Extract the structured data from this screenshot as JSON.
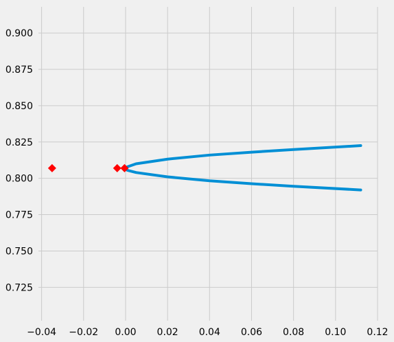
{
  "chart_data": {
    "type": "line",
    "style": "fivethirtyeight",
    "grid": true,
    "xlim": [
      -0.0415,
      0.12
    ],
    "ylim": [
      0.702,
      0.918
    ],
    "x_ticks": [
      -0.04,
      -0.02,
      0.0,
      0.02,
      0.04,
      0.06,
      0.08,
      0.1,
      0.12
    ],
    "x_tick_labels": [
      "−0.04",
      "−0.02",
      "0.00",
      "0.02",
      "0.04",
      "0.06",
      "0.08",
      "0.10",
      "0.12"
    ],
    "y_ticks": [
      0.725,
      0.75,
      0.775,
      0.8,
      0.825,
      0.85,
      0.875,
      0.9
    ],
    "y_tick_labels": [
      "0.725",
      "0.750",
      "0.775",
      "0.800",
      "0.825",
      "0.850",
      "0.875",
      "0.900"
    ],
    "series": [
      {
        "type": "line",
        "color": "#008fd5",
        "points": [
          [
            0.112,
            0.8225
          ],
          [
            0.08,
            0.8198
          ],
          [
            0.06,
            0.818
          ],
          [
            0.04,
            0.816
          ],
          [
            0.02,
            0.8132
          ],
          [
            0.005,
            0.81
          ],
          [
            0.001,
            0.808
          ],
          [
            -0.001,
            0.8068
          ],
          [
            0.001,
            0.8055
          ],
          [
            0.005,
            0.804
          ],
          [
            0.02,
            0.801
          ],
          [
            0.04,
            0.7983
          ],
          [
            0.06,
            0.7963
          ],
          [
            0.08,
            0.7945
          ],
          [
            0.112,
            0.792
          ]
        ]
      },
      {
        "type": "scatter",
        "marker": "diamond",
        "color": "#ff0000",
        "points": [
          [
            -0.035,
            0.807
          ],
          [
            -0.004,
            0.807
          ],
          [
            -0.0005,
            0.807
          ]
        ]
      }
    ]
  }
}
